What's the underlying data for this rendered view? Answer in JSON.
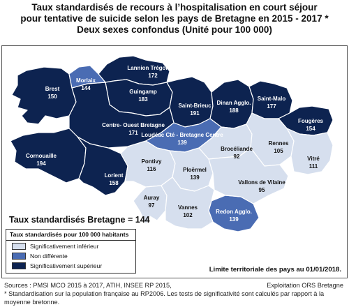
{
  "title": {
    "line1": "Taux standardisés de recours à l’hospitalisation en court séjour",
    "line2": "pour tentative de suicide selon les pays de Bretagne en 2015 - 2017 *",
    "line3": "Deux sexes confondus (Unité pour 100 000)"
  },
  "regional_rate": "Taux standardisés Bretagne = 144",
  "legend": {
    "title": "Taux standardisés pour 100 000 habitants",
    "items": [
      {
        "label": "Significativement inférieur",
        "color": "#d6dfee"
      },
      {
        "label": "Non différente",
        "color": "#4a6cb3"
      },
      {
        "label": "Significativement supérieur",
        "color": "#0d2350"
      }
    ]
  },
  "limit_note": "Limite territoriale des pays au 01/01/2018.",
  "regions": [
    {
      "name": "Brest",
      "value": "150"
    },
    {
      "name": "Morlaix",
      "value": "144"
    },
    {
      "name": "Lannion Trégor Cté",
      "value": "172"
    },
    {
      "name": "Guingamp",
      "value": "183"
    },
    {
      "name": "Saint-Brieuc",
      "value": "191"
    },
    {
      "name": "Dinan Agglo.",
      "value": "188"
    },
    {
      "name": "Saint-Malo",
      "value": "177"
    },
    {
      "name": "Fougères",
      "value": "154"
    },
    {
      "name": "Centre- Ouest Bretagne",
      "value": "171"
    },
    {
      "name": "Loudéac Cté - Bretagne Centre",
      "value": "139"
    },
    {
      "name": "Brocéliande",
      "value": "92"
    },
    {
      "name": "Rennes",
      "value": "105"
    },
    {
      "name": "Vitré",
      "value": "111"
    },
    {
      "name": "Cornouaille",
      "value": "194"
    },
    {
      "name": "Pontivy",
      "value": "116"
    },
    {
      "name": "Ploërmel",
      "value": "139"
    },
    {
      "name": "Vallons de Vilaine",
      "value": "95"
    },
    {
      "name": "Lorient",
      "value": "158"
    },
    {
      "name": "Auray",
      "value": "97"
    },
    {
      "name": "Vannes",
      "value": "102"
    },
    {
      "name": "Redon Agglo.",
      "value": "139"
    }
  ],
  "footer": {
    "line1": "Sources : PMSI MCO 2015 à 2017, ATIH, INSEE RP 2015,",
    "credit": "Exploitation ORS Bretagne",
    "line2": "* Standardisation sur la population française au RP2006. Les tests de significativité sont calculés par rapport à la",
    "line3": "moyenne bretonne."
  }
}
